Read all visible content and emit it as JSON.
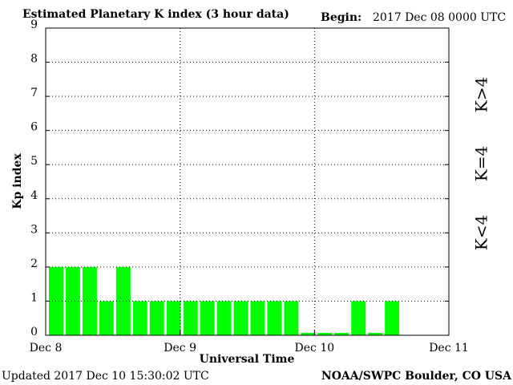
{
  "chart_data": {
    "type": "bar",
    "title": "Estimated Planetary K index (3 hour data)",
    "begin_label": "Begin:",
    "begin": "2017 Dec 08 0000 UTC",
    "y_label": "Kp index",
    "x_label": "Universal Time",
    "updated": "Updated 2017 Dec 10 15:30:02 UTC",
    "source": "NOAA/SWPC Boulder, CO USA",
    "legend": [
      {
        "name": "K<4",
        "color": "#22ee22"
      },
      {
        "name": "K=4",
        "color": "#ffcc00"
      },
      {
        "name": "K>4",
        "color": "#ee2200"
      }
    ],
    "categories": [
      null,
      null,
      null,
      null,
      null,
      null,
      null,
      null,
      null,
      null,
      null,
      null,
      null,
      null,
      null,
      null,
      null,
      null,
      null,
      null,
      null
    ],
    "values": [
      2,
      2,
      2,
      1,
      2,
      1,
      1,
      1,
      1,
      1,
      1,
      1,
      1,
      1,
      1,
      0,
      0,
      0,
      1,
      0,
      1
    ],
    "color": "#00ff00",
    "bars_per_day": 8,
    "xlim": [
      0,
      3
    ],
    "xticks": [
      {
        "value": 0,
        "label": "Dec 8"
      },
      {
        "value": 1,
        "label": "Dec 9"
      },
      {
        "value": 2,
        "label": "Dec 10"
      },
      {
        "value": 3,
        "label": "Dec 11"
      }
    ],
    "ylim": [
      0,
      9
    ],
    "yticks": [
      0,
      1,
      2,
      3,
      4,
      5,
      6,
      7,
      8,
      9
    ],
    "grid": true
  }
}
